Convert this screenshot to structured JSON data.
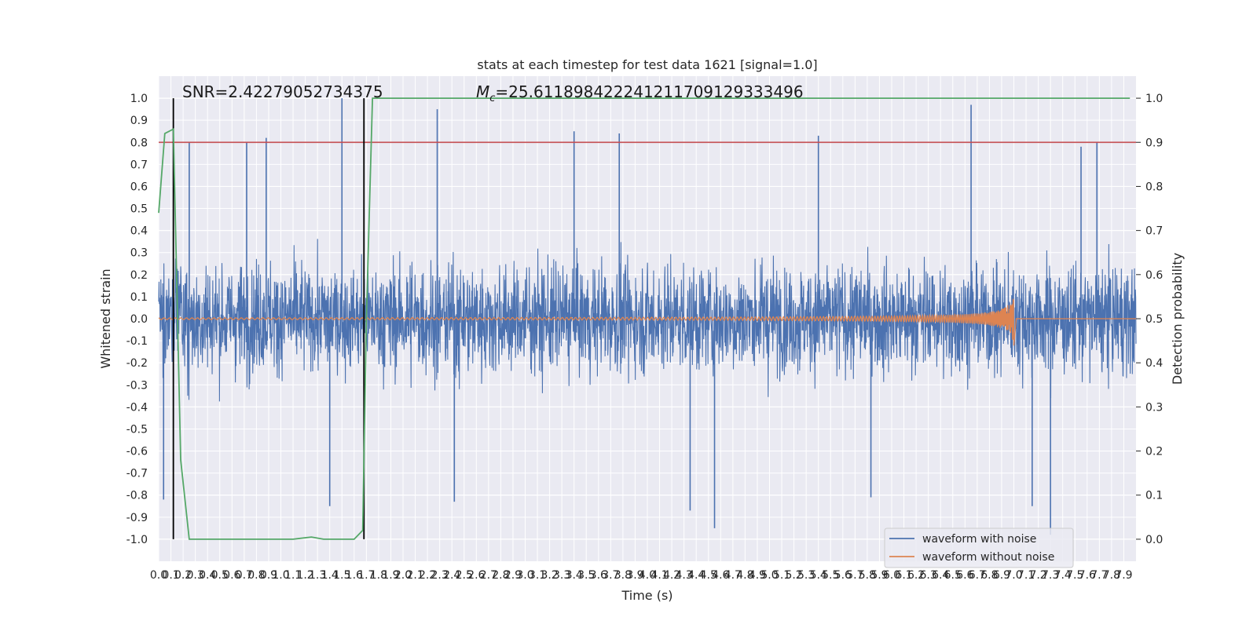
{
  "chart_data": {
    "type": "line",
    "title": "stats at each timestep for test data 1621 [signal=1.0]",
    "xlabel": "Time (s)",
    "ylabel": "Whitened strain",
    "y2label": "Detection probability",
    "xlim": [
      0,
      8
    ],
    "ylim": [
      -1.1,
      1.1
    ],
    "y2lim": [
      -0.05,
      1.05
    ],
    "grid": true,
    "legend_position": "lower-right",
    "x_ticks": [
      "0.0",
      "0.1",
      "0.2",
      "0.3",
      "0.4",
      "0.5",
      "0.6",
      "0.7",
      "0.8",
      "0.9",
      "1.0",
      "1.1",
      "1.2",
      "1.3",
      "1.4",
      "1.5",
      "1.6",
      "1.7",
      "1.8",
      "1.9",
      "2.0",
      "2.1",
      "2.2",
      "2.3",
      "2.4",
      "2.5",
      "2.6",
      "2.7",
      "2.8",
      "2.9",
      "3.0",
      "3.1",
      "3.2",
      "3.3",
      "3.4",
      "3.5",
      "3.6",
      "3.7",
      "3.8",
      "3.9",
      "4.0",
      "4.1",
      "4.2",
      "4.3",
      "4.4",
      "4.5",
      "4.6",
      "4.7",
      "4.8",
      "4.9",
      "5.0",
      "5.1",
      "5.2",
      "5.3",
      "5.4",
      "5.5",
      "5.6",
      "5.7",
      "5.8",
      "5.9",
      "6.0",
      "6.1",
      "6.2",
      "6.3",
      "6.4",
      "6.5",
      "6.6",
      "6.7",
      "6.8",
      "6.9",
      "7.0",
      "7.1",
      "7.2",
      "7.3",
      "7.4",
      "7.5",
      "7.6",
      "7.7",
      "7.8",
      "7.9"
    ],
    "y_ticks": [
      "-1.0",
      "-0.9",
      "-0.8",
      "-0.7",
      "-0.6",
      "-0.5",
      "-0.4",
      "-0.3",
      "-0.2",
      "-0.1",
      "0.0",
      "0.1",
      "0.2",
      "0.3",
      "0.4",
      "0.5",
      "0.6",
      "0.7",
      "0.8",
      "0.9",
      "1.0"
    ],
    "y2_ticks": [
      "0.0",
      "0.1",
      "0.2",
      "0.3",
      "0.4",
      "0.5",
      "0.6",
      "0.7",
      "0.8",
      "0.9",
      "1.0"
    ],
    "annotations": {
      "snr": "SNR=2.42279052734375",
      "mc_symbol": "M",
      "mc_subscript": "c",
      "mc_value": "=25.611898422241211709129333496"
    },
    "threshold": 0.8,
    "threshold_color": "#c44e52",
    "vertical_markers": [
      0.12,
      1.68
    ],
    "series": [
      {
        "name": "waveform with noise",
        "color": "#4c72b0",
        "envelope": "noise roughly within ±0.4, occasional spikes to ±1.0",
        "spikes": [
          [
            0.04,
            -0.82
          ],
          [
            0.25,
            0.8
          ],
          [
            0.72,
            0.8
          ],
          [
            0.88,
            0.82
          ],
          [
            1.4,
            -0.85
          ],
          [
            1.5,
            1.0
          ],
          [
            2.28,
            0.95
          ],
          [
            2.42,
            -0.83
          ],
          [
            3.4,
            0.85
          ],
          [
            3.77,
            0.84
          ],
          [
            4.35,
            -0.87
          ],
          [
            4.55,
            -0.95
          ],
          [
            5.4,
            0.83
          ],
          [
            5.83,
            -0.81
          ],
          [
            6.65,
            0.97
          ],
          [
            7.15,
            -0.85
          ],
          [
            7.3,
            -0.98
          ],
          [
            7.55,
            0.78
          ],
          [
            7.68,
            0.8
          ]
        ]
      },
      {
        "name": "waveform without noise",
        "color": "#dd8452",
        "description": "chirp that grows to about ±0.13 and ends near 7.0 s",
        "merger_time": 7.0,
        "peak_amplitude": 0.13
      },
      {
        "name": "Detection probability",
        "color": "#55a868",
        "axis": "right",
        "x": [
          0.0,
          0.05,
          0.12,
          0.18,
          0.25,
          1.1,
          1.25,
          1.35,
          1.6,
          1.67,
          1.7,
          1.75,
          7.95
        ],
        "values": [
          0.74,
          0.92,
          0.93,
          0.18,
          0.0,
          0.0,
          0.005,
          0.0,
          0.0,
          0.02,
          0.5,
          1.0,
          1.0
        ]
      }
    ]
  }
}
